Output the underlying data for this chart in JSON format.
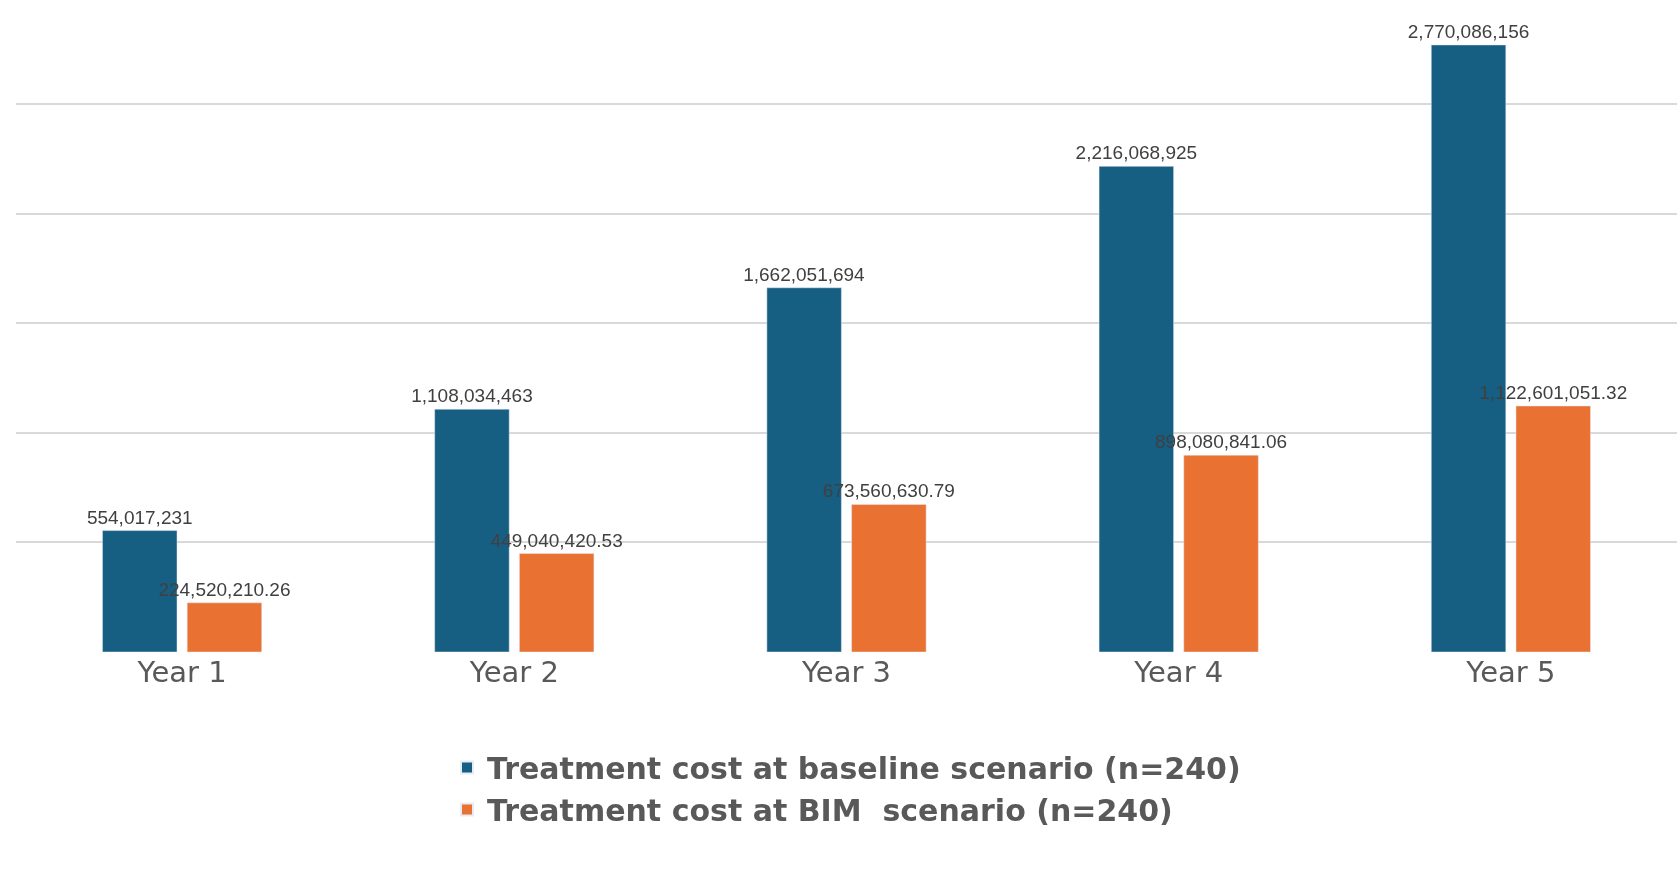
{
  "chart_data": {
    "type": "bar",
    "categories": [
      "Year 1",
      "Year 2",
      "Year 3",
      "Year 4",
      "Year 5"
    ],
    "series": [
      {
        "name": "Treatment cost at baseline scenario (n=240)",
        "color": "#175e83",
        "values": [
          554017231,
          1108034463,
          1662051694,
          2216068925,
          2770086156
        ],
        "value_labels": [
          "554,017,231",
          "1,108,034,463",
          "1,662,051,694",
          "2,216,068,925",
          "2,770,086,156"
        ]
      },
      {
        "name": "Treatment cost at BIM  scenario (n=240)",
        "color": "#e97132",
        "values": [
          224520210.26,
          449040420.53,
          673560630.79,
          898080841.06,
          1122601051.32
        ],
        "value_labels": [
          "224,520,210.26",
          "449,040,420.53",
          "673,560,630.79",
          "898,080,841.06",
          "1,122,601,051.32"
        ]
      }
    ],
    "tick_labels": "x",
    "grid": "y",
    "legend": "bottom"
  }
}
